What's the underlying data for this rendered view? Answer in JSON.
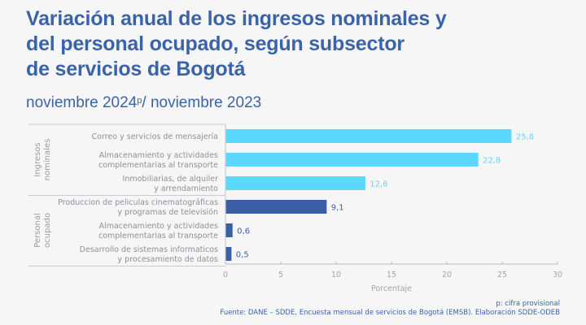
{
  "header": {
    "title_lines": [
      "Variación anual de los ingresos nominales y",
      "del personal ocupado, según subsector",
      "de servicios de Bogotá"
    ],
    "subtitle_pre": "noviembre 2024",
    "subtitle_sup": "p",
    "subtitle_post": "/ noviembre 2023"
  },
  "footer": {
    "note": "p: cifra provisional",
    "source": "Fuente: DANE – SDDE, Encuesta mensual de servicios de Bogotá (EMSB). Elaboración SDDE-ODEB"
  },
  "colors": {
    "ingresos": "#5cd8fe",
    "personal": "#3a5fa6",
    "title": "#3a63a8"
  },
  "chart_data": {
    "type": "bar",
    "orientation": "horizontal",
    "title": "Variación anual de los ingresos nominales y del personal ocupado, según subsector de servicios de Bogotá",
    "subtitle": "noviembre 2024p/ noviembre 2023",
    "xlabel": "Porcentaje",
    "ylabel": "",
    "xlim": [
      0,
      30
    ],
    "xticks": [
      0,
      5,
      10,
      15,
      20,
      25,
      30
    ],
    "grid": false,
    "legend": "none",
    "groups": [
      {
        "name": "Ingresos nominales",
        "name_lines": [
          "Ingresos",
          "nominales"
        ],
        "color": "#5cd8fe",
        "categories": [
          {
            "label_lines": [
              "Correo y servicios de mensajería"
            ],
            "value": 25.8,
            "value_label": "25,8"
          },
          {
            "label_lines": [
              "Almacenamiento y actividades",
              "complementarias al transporte"
            ],
            "value": 22.8,
            "value_label": "22,8"
          },
          {
            "label_lines": [
              "Inmobiliarias,  de alquiler",
              "y arrendamiento"
            ],
            "value": 12.6,
            "value_label": "12,6"
          }
        ]
      },
      {
        "name": "Personal ocupado",
        "name_lines": [
          "Personal",
          "ocupado"
        ],
        "color": "#3a5fa6",
        "categories": [
          {
            "label_lines": [
              "Produccion de peliculas cinematográficas",
              "y programas de televisión"
            ],
            "value": 9.1,
            "value_label": "9,1"
          },
          {
            "label_lines": [
              "Almacenamiento y actividades",
              "complementarias al transporte"
            ],
            "value": 0.6,
            "value_label": "0,6"
          },
          {
            "label_lines": [
              "Desarrollo de sistemas informaticos",
              "y procesamiento de datos"
            ],
            "value": 0.5,
            "value_label": "0,5"
          }
        ]
      }
    ]
  }
}
